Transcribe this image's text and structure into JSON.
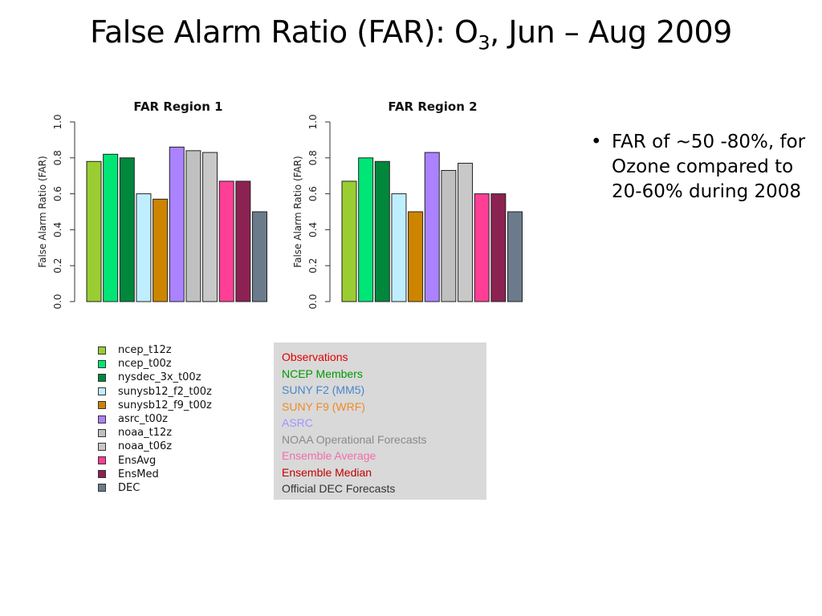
{
  "slide": {
    "title_main": "False Alarm Ratio (FAR): O",
    "title_sub": "3",
    "title_rest": ", Jun – Aug 2009"
  },
  "chart_data": [
    {
      "type": "bar",
      "title": "FAR Region 1",
      "ylabel": "False Alarm Ratio (FAR)",
      "ylim": [
        0,
        1
      ],
      "yticks": [
        "0.0",
        "0.2",
        "0.4",
        "0.6",
        "0.8",
        "1.0"
      ],
      "categories": [
        "ncep_t12z",
        "ncep_t00z",
        "nysdec_3x_t00z",
        "sunysb12_f2_t00z",
        "sunysb12_f9_t00z",
        "asrc_t00z",
        "noaa_t12z",
        "noaa_t06z",
        "EnsAvg",
        "EnsMed",
        "DEC"
      ],
      "values": [
        0.78,
        0.82,
        0.8,
        0.6,
        0.57,
        0.86,
        0.84,
        0.83,
        0.67,
        0.67,
        0.5
      ]
    },
    {
      "type": "bar",
      "title": "FAR Region 2",
      "ylabel": "False Alarm Ratio (FAR)",
      "ylim": [
        0,
        1
      ],
      "yticks": [
        "0.0",
        "0.2",
        "0.4",
        "0.6",
        "0.8",
        "1.0"
      ],
      "categories": [
        "ncep_t12z",
        "ncep_t00z",
        "nysdec_3x_t00z",
        "sunysb12_f2_t00z",
        "sunysb12_f9_t00z",
        "asrc_t00z",
        "noaa_t12z",
        "noaa_t06z",
        "EnsAvg",
        "EnsMed",
        "DEC"
      ],
      "values": [
        0.67,
        0.8,
        0.78,
        0.6,
        0.5,
        0.83,
        0.73,
        0.77,
        0.6,
        0.6,
        0.5
      ]
    }
  ],
  "legend": [
    {
      "label": "ncep_t12z",
      "color": "#9acd32"
    },
    {
      "label": "ncep_t00z",
      "color": "#00e676"
    },
    {
      "label": "nysdec_3x_t00z",
      "color": "#00873c"
    },
    {
      "label": "sunysb12_f2_t00z",
      "color": "#bfefff"
    },
    {
      "label": "sunysb12_f9_t00z",
      "color": "#cd8500"
    },
    {
      "label": "asrc_t00z",
      "color": "#ab82ff"
    },
    {
      "label": "noaa_t12z",
      "color": "#c0c0c0"
    },
    {
      "label": "noaa_t06z",
      "color": "#c8c8c8"
    },
    {
      "label": "EnsAvg",
      "color": "#ff3e96"
    },
    {
      "label": "EnsMed",
      "color": "#8b2252"
    },
    {
      "label": "DEC",
      "color": "#6c7b8b"
    }
  ],
  "groups": [
    {
      "label": "Observations",
      "color": "#e00000"
    },
    {
      "label": "NCEP Members",
      "color": "#009900"
    },
    {
      "label": "SUNY F2 (MM5)",
      "color": "#4a86c8"
    },
    {
      "label": "SUNY F9 (WRF)",
      "color": "#f08a24"
    },
    {
      "label": "ASRC",
      "color": "#9f94ff"
    },
    {
      "label": "NOAA Operational Forecasts",
      "color": "#8a8a8a"
    },
    {
      "label": "Ensemble Average",
      "color": "#f06fa8"
    },
    {
      "label": "Ensemble Median",
      "color": "#c00000"
    },
    {
      "label": "Official DEC Forecasts",
      "color": "#333333"
    }
  ],
  "bullets": [
    {
      "text": "FAR of ~50 -80%, for Ozone compared to 20-60% during 2008"
    }
  ]
}
